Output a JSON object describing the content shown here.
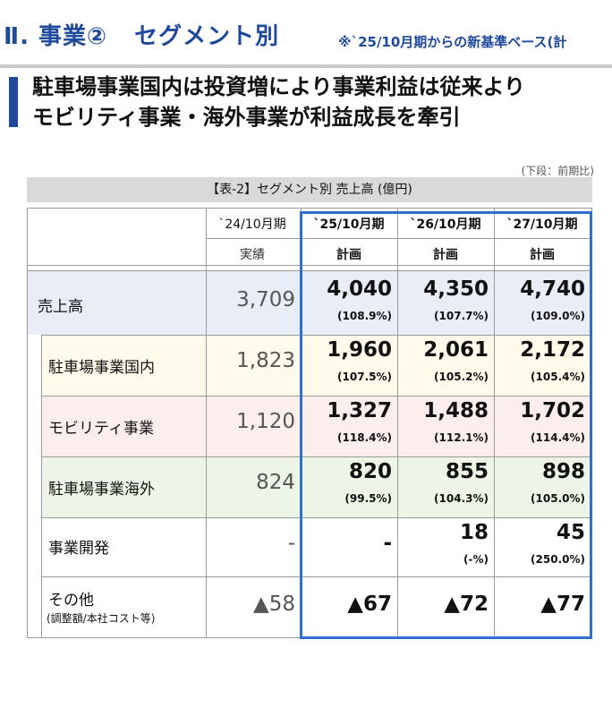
{
  "header": {
    "title_num": "Ⅱ. 事業②",
    "title_sec": "セグメント別",
    "note": "※`25/10月期からの新基準ベース(計"
  },
  "headline": {
    "line1": "駐車場事業国内は投資増により事業利益は従来より",
    "line2": "モビリティ事業・海外事業が利益成長を牽引"
  },
  "unit_note": "(下段：前期比)",
  "table": {
    "caption": "【表-2】セグメント別 売上高 (億円)",
    "columns": [
      {
        "period": "`24/10月期",
        "kind": "実績"
      },
      {
        "period": "`25/10月期",
        "kind": "計画"
      },
      {
        "period": "`26/10月期",
        "kind": "計画"
      },
      {
        "period": "`27/10月期",
        "kind": "計画"
      }
    ],
    "rows": [
      {
        "label": "売上高",
        "sublabel": "",
        "actual": "3,709",
        "plans": [
          {
            "v": "4,040",
            "p": "(108.9%)"
          },
          {
            "v": "4,350",
            "p": "(107.7%)"
          },
          {
            "v": "4,740",
            "p": "(109.0%)"
          }
        ]
      },
      {
        "label": "駐車場事業国内",
        "sublabel": "",
        "actual": "1,823",
        "plans": [
          {
            "v": "1,960",
            "p": "(107.5%)"
          },
          {
            "v": "2,061",
            "p": "(105.2%)"
          },
          {
            "v": "2,172",
            "p": "(105.4%)"
          }
        ]
      },
      {
        "label": "モビリティ事業",
        "sublabel": "",
        "actual": "1,120",
        "plans": [
          {
            "v": "1,327",
            "p": "(118.4%)"
          },
          {
            "v": "1,488",
            "p": "(112.1%)"
          },
          {
            "v": "1,702",
            "p": "(114.4%)"
          }
        ]
      },
      {
        "label": "駐車場事業海外",
        "sublabel": "",
        "actual": "824",
        "plans": [
          {
            "v": "820",
            "p": "(99.5%)"
          },
          {
            "v": "855",
            "p": "(104.3%)"
          },
          {
            "v": "898",
            "p": "(105.0%)"
          }
        ]
      },
      {
        "label": "事業開発",
        "sublabel": "",
        "actual": "-",
        "plans": [
          {
            "v": "-",
            "p": ""
          },
          {
            "v": "18",
            "p": "(-%)"
          },
          {
            "v": "45",
            "p": "(250.0%)"
          }
        ]
      },
      {
        "label": "その他",
        "sublabel": "(調整額/本社コスト等)",
        "actual": "▲58",
        "plans": [
          {
            "v": "▲67",
            "p": ""
          },
          {
            "v": "▲72",
            "p": ""
          },
          {
            "v": "▲77",
            "p": ""
          }
        ]
      }
    ]
  },
  "colors": {
    "brand_blue": "#1f4a9c",
    "frame_blue": "#2f6fd1",
    "row_total": "#e8edf8",
    "row_domestic": "#fffaea",
    "row_mobility": "#fdeeee",
    "row_overseas": "#edf6e6"
  }
}
